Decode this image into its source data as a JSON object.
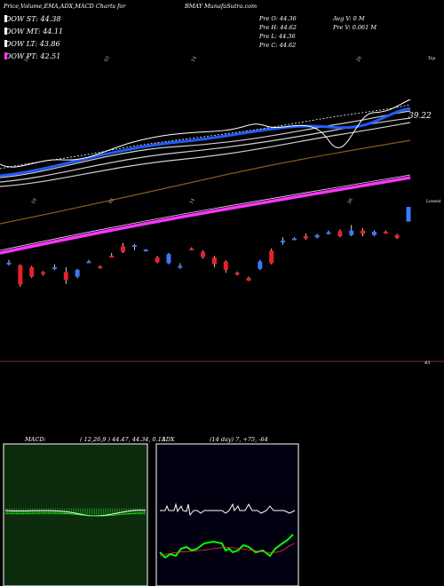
{
  "header": {
    "title": "Price,Volume,EMA,ADX,MACD Charts for",
    "ticker": "BMAY",
    "site": "MunafaSutra.com"
  },
  "legend": [
    {
      "label": "DOW ST: 44.38",
      "color": "#ffffff"
    },
    {
      "label": "DOW MT: 44.11",
      "color": "#ffffff"
    },
    {
      "label": "DOW LT: 43.86",
      "color": "#ffffff"
    },
    {
      "label": "DOW PT: 42.51",
      "color": "#ff33ff"
    }
  ],
  "ohlc": {
    "open": "Pre  O: 44.36",
    "high": "Pre  H: 44.62",
    "low": "Pre  L: 44.36",
    "close": "Pre  C: 44.62",
    "avg_volume": "Avg V: 0  M",
    "volume": "Pre  V: 0.061 M"
  },
  "price_labels": {
    "last": "39.22",
    "top": "Top",
    "low": "Lowest",
    "bottom_left": "43"
  },
  "macd_panel": {
    "label": "MACD:",
    "params": "( 12,26,9 ) 44.47,  44.34,  0.13"
  },
  "adx_panel": {
    "label": "ADX",
    "params": "(14  day) 7,  +75,  -64"
  },
  "colors": {
    "up": "#3a78ff",
    "down": "#e8212a",
    "ema_short": "#1f5cff",
    "ema_long": "#ff33ff",
    "macd_bg": "#0d2b0d",
    "adx_bg": "#000010"
  },
  "chart_data": {
    "type": "candlestick",
    "candles": [
      {
        "o": 43.62,
        "h": 43.68,
        "l": 43.58,
        "c": 43.63
      },
      {
        "o": 43.58,
        "h": 43.6,
        "l": 43.2,
        "c": 43.24
      },
      {
        "o": 43.55,
        "h": 43.57,
        "l": 43.36,
        "c": 43.38
      },
      {
        "o": 43.46,
        "h": 43.48,
        "l": 43.4,
        "c": 43.44
      },
      {
        "o": 43.53,
        "h": 43.6,
        "l": 43.5,
        "c": 43.55
      },
      {
        "o": 43.46,
        "h": 43.55,
        "l": 43.25,
        "c": 43.32
      },
      {
        "o": 43.38,
        "h": 43.52,
        "l": 43.35,
        "c": 43.5
      },
      {
        "o": 43.65,
        "h": 43.68,
        "l": 43.62,
        "c": 43.65
      },
      {
        "o": 43.56,
        "h": 43.58,
        "l": 43.52,
        "c": 43.55
      },
      {
        "o": 43.75,
        "h": 43.8,
        "l": 43.72,
        "c": 43.74
      },
      {
        "o": 43.92,
        "h": 43.98,
        "l": 43.8,
        "c": 43.82
      },
      {
        "o": 43.92,
        "h": 43.96,
        "l": 43.85,
        "c": 43.94
      },
      {
        "o": 43.85,
        "h": 43.87,
        "l": 43.83,
        "c": 43.86
      },
      {
        "o": 43.72,
        "h": 43.75,
        "l": 43.62,
        "c": 43.64
      },
      {
        "o": 43.62,
        "h": 43.8,
        "l": 43.6,
        "c": 43.78
      },
      {
        "o": 43.54,
        "h": 43.62,
        "l": 43.52,
        "c": 43.57
      },
      {
        "o": 43.88,
        "h": 43.9,
        "l": 43.85,
        "c": 43.86
      },
      {
        "o": 43.82,
        "h": 43.85,
        "l": 43.7,
        "c": 43.73
      },
      {
        "o": 43.72,
        "h": 43.75,
        "l": 43.55,
        "c": 43.6
      },
      {
        "o": 43.65,
        "h": 43.67,
        "l": 43.45,
        "c": 43.5
      },
      {
        "o": 43.45,
        "h": 43.47,
        "l": 43.4,
        "c": 43.42
      },
      {
        "o": 43.36,
        "h": 43.38,
        "l": 43.3,
        "c": 43.31
      },
      {
        "o": 43.52,
        "h": 43.68,
        "l": 43.5,
        "c": 43.65
      },
      {
        "o": 43.84,
        "h": 43.88,
        "l": 43.6,
        "c": 43.62
      },
      {
        "o": 44.0,
        "h": 44.08,
        "l": 43.95,
        "c": 44.02
      },
      {
        "o": 44.05,
        "h": 44.08,
        "l": 44.03,
        "c": 44.06
      },
      {
        "o": 44.1,
        "h": 44.15,
        "l": 44.04,
        "c": 44.06
      },
      {
        "o": 44.08,
        "h": 44.14,
        "l": 44.06,
        "c": 44.12
      },
      {
        "o": 44.16,
        "h": 44.2,
        "l": 44.13,
        "c": 44.17
      },
      {
        "o": 44.19,
        "h": 44.22,
        "l": 44.08,
        "c": 44.1
      },
      {
        "o": 44.12,
        "h": 44.3,
        "l": 44.1,
        "c": 44.2
      },
      {
        "o": 44.2,
        "h": 44.24,
        "l": 44.1,
        "c": 44.14
      },
      {
        "o": 44.12,
        "h": 44.2,
        "l": 44.1,
        "c": 44.18
      },
      {
        "o": 44.18,
        "h": 44.2,
        "l": 44.14,
        "c": 44.16
      },
      {
        "o": 44.12,
        "h": 44.14,
        "l": 44.05,
        "c": 44.07
      },
      {
        "o": 44.36,
        "h": 44.62,
        "l": 44.36,
        "c": 44.62
      }
    ],
    "ylim": [
      42.9,
      44.7
    ]
  }
}
